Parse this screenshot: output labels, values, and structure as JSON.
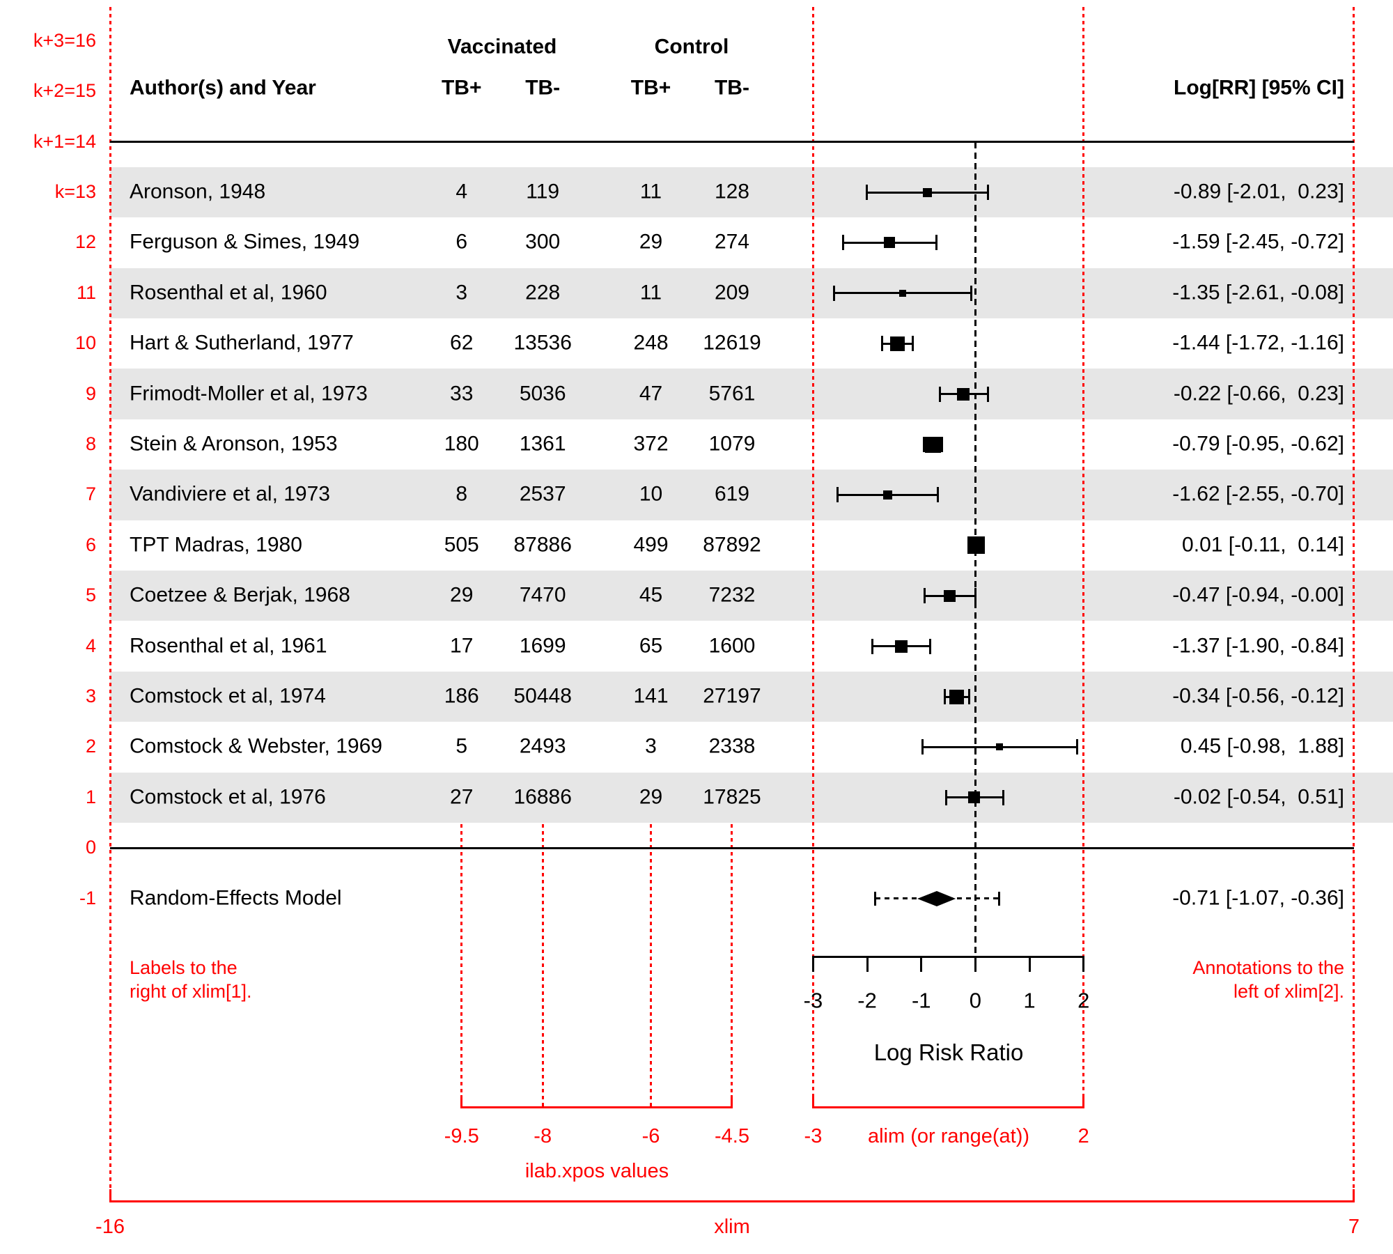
{
  "header": {
    "author": "Author(s) and Year",
    "group_vaccinated": "Vaccinated",
    "group_control": "Control",
    "subcols": [
      "TB+",
      "TB-",
      "TB+",
      "TB-"
    ],
    "annotation": "Log[RR] [95% CI]"
  },
  "chart_data": {
    "type": "scatter",
    "variant": "forest-plot",
    "xlabel": "Log Risk Ratio",
    "xlim": [
      -16,
      7
    ],
    "alim": [
      -3,
      2
    ],
    "at_ticks": [
      -3,
      -2,
      -1,
      0,
      1,
      2
    ],
    "at_tick_labels": [
      "-3",
      "-2",
      "-1",
      "0",
      "1",
      "2"
    ],
    "ilab_xpos": [
      -9.5,
      -8,
      -6,
      -4.5
    ],
    "zero_ref": 0,
    "studies": [
      {
        "row": 13,
        "slab": "Aronson, 1948",
        "v_tbpos": "4",
        "v_tbneg": "119",
        "c_tbpos": "11",
        "c_tbneg": "128",
        "yi": -0.89,
        "ci_lb": -2.01,
        "ci_ub": 0.23,
        "annotation": "-0.89 [-2.01,  0.23]",
        "psize": 13,
        "shaded": true
      },
      {
        "row": 12,
        "slab": "Ferguson & Simes, 1949",
        "v_tbpos": "6",
        "v_tbneg": "300",
        "c_tbpos": "29",
        "c_tbneg": "274",
        "yi": -1.59,
        "ci_lb": -2.45,
        "ci_ub": -0.72,
        "annotation": "-1.59 [-2.45, -0.72]",
        "psize": 16,
        "shaded": false
      },
      {
        "row": 11,
        "slab": "Rosenthal et al, 1960",
        "v_tbpos": "3",
        "v_tbneg": "228",
        "c_tbpos": "11",
        "c_tbneg": "209",
        "yi": -1.35,
        "ci_lb": -2.61,
        "ci_ub": -0.08,
        "annotation": "-1.35 [-2.61, -0.08]",
        "psize": 10,
        "shaded": true
      },
      {
        "row": 10,
        "slab": "Hart & Sutherland, 1977",
        "v_tbpos": "62",
        "v_tbneg": "13536",
        "c_tbpos": "248",
        "c_tbneg": "12619",
        "yi": -1.44,
        "ci_lb": -1.72,
        "ci_ub": -1.16,
        "annotation": "-1.44 [-1.72, -1.16]",
        "psize": 21,
        "shaded": false
      },
      {
        "row": 9,
        "slab": "Frimodt-Moller et al, 1973",
        "v_tbpos": "33",
        "v_tbneg": "5036",
        "c_tbpos": "47",
        "c_tbneg": "5761",
        "yi": -0.22,
        "ci_lb": -0.66,
        "ci_ub": 0.23,
        "annotation": "-0.22 [-0.66,  0.23]",
        "psize": 18,
        "shaded": true
      },
      {
        "row": 8,
        "slab": "Stein & Aronson, 1953",
        "v_tbpos": "180",
        "v_tbneg": "1361",
        "c_tbpos": "372",
        "c_tbneg": "1079",
        "yi": -0.79,
        "ci_lb": -0.95,
        "ci_ub": -0.62,
        "annotation": "-0.79 [-0.95, -0.62]",
        "psize": 23,
        "shaded": false
      },
      {
        "row": 7,
        "slab": "Vandiviere et al, 1973",
        "v_tbpos": "8",
        "v_tbneg": "2537",
        "c_tbpos": "10",
        "c_tbneg": "619",
        "yi": -1.62,
        "ci_lb": -2.55,
        "ci_ub": -0.7,
        "annotation": "-1.62 [-2.55, -0.70]",
        "psize": 13,
        "shaded": true
      },
      {
        "row": 6,
        "slab": "TPT Madras, 1980",
        "v_tbpos": "505",
        "v_tbneg": "87886",
        "c_tbpos": "499",
        "c_tbneg": "87892",
        "yi": 0.01,
        "ci_lb": -0.11,
        "ci_ub": 0.14,
        "annotation": "0.01 [-0.11,  0.14]",
        "psize": 25,
        "shaded": false
      },
      {
        "row": 5,
        "slab": "Coetzee & Berjak, 1968",
        "v_tbpos": "29",
        "v_tbneg": "7470",
        "c_tbpos": "45",
        "c_tbneg": "7232",
        "yi": -0.47,
        "ci_lb": -0.94,
        "ci_ub": 0.0,
        "annotation": "-0.47 [-0.94, -0.00]",
        "psize": 17,
        "shaded": true
      },
      {
        "row": 4,
        "slab": "Rosenthal et al, 1961",
        "v_tbpos": "17",
        "v_tbneg": "1699",
        "c_tbpos": "65",
        "c_tbneg": "1600",
        "yi": -1.37,
        "ci_lb": -1.9,
        "ci_ub": -0.84,
        "annotation": "-1.37 [-1.90, -0.84]",
        "psize": 18,
        "shaded": false
      },
      {
        "row": 3,
        "slab": "Comstock et al, 1974",
        "v_tbpos": "186",
        "v_tbneg": "50448",
        "c_tbpos": "141",
        "c_tbneg": "27197",
        "yi": -0.34,
        "ci_lb": -0.56,
        "ci_ub": -0.12,
        "annotation": "-0.34 [-0.56, -0.12]",
        "psize": 21,
        "shaded": true
      },
      {
        "row": 2,
        "slab": "Comstock & Webster, 1969",
        "v_tbpos": "5",
        "v_tbneg": "2493",
        "c_tbpos": "3",
        "c_tbneg": "2338",
        "yi": 0.45,
        "ci_lb": -0.98,
        "ci_ub": 1.88,
        "annotation": "0.45 [-0.98,  1.88]",
        "psize": 10,
        "shaded": false
      },
      {
        "row": 1,
        "slab": "Comstock et al, 1976",
        "v_tbpos": "27",
        "v_tbneg": "16886",
        "c_tbpos": "29",
        "c_tbneg": "17825",
        "yi": -0.02,
        "ci_lb": -0.54,
        "ci_ub": 0.51,
        "annotation": "-0.02 [-0.54,  0.51]",
        "psize": 17,
        "shaded": true
      }
    ],
    "summary": {
      "row": -1,
      "slab": "Random-Effects Model",
      "yi": -0.71,
      "ci_lb": -1.07,
      "ci_ub": -0.36,
      "pi_lb": -1.85,
      "pi_ub": 0.44,
      "annotation": "-0.71 [-1.07, -0.36]"
    }
  },
  "red_annotations": {
    "row_numbers": [
      {
        "row": 16,
        "label": "k+3=16"
      },
      {
        "row": 15,
        "label": "k+2=15"
      },
      {
        "row": 14,
        "label": "k+1=14"
      },
      {
        "row": 13,
        "label": "k=13"
      },
      {
        "row": 12,
        "label": "12"
      },
      {
        "row": 11,
        "label": "11"
      },
      {
        "row": 10,
        "label": "10"
      },
      {
        "row": 9,
        "label": "9"
      },
      {
        "row": 8,
        "label": "8"
      },
      {
        "row": 7,
        "label": "7"
      },
      {
        "row": 6,
        "label": "6"
      },
      {
        "row": 5,
        "label": "5"
      },
      {
        "row": 4,
        "label": "4"
      },
      {
        "row": 3,
        "label": "3"
      },
      {
        "row": 2,
        "label": "2"
      },
      {
        "row": 1,
        "label": "1"
      },
      {
        "row": 0,
        "label": "0"
      },
      {
        "row": -1,
        "label": "-1"
      }
    ],
    "left_note": "Labels to the\nright of xlim[1].",
    "right_note": "Annotations to the\nleft of xlim[2].",
    "ilab_labels": [
      "-9.5",
      "-8",
      "-6",
      "-4.5"
    ],
    "ilab_caption": "ilab.xpos values",
    "alim_labels": [
      "-3",
      "2"
    ],
    "alim_caption": "alim (or range(at))",
    "xlim_labels": [
      "-16",
      "7"
    ],
    "xlim_caption": "xlim"
  },
  "colors": {
    "red": "#ff0000",
    "band": "#e6e6e6",
    "text": "#000000"
  }
}
